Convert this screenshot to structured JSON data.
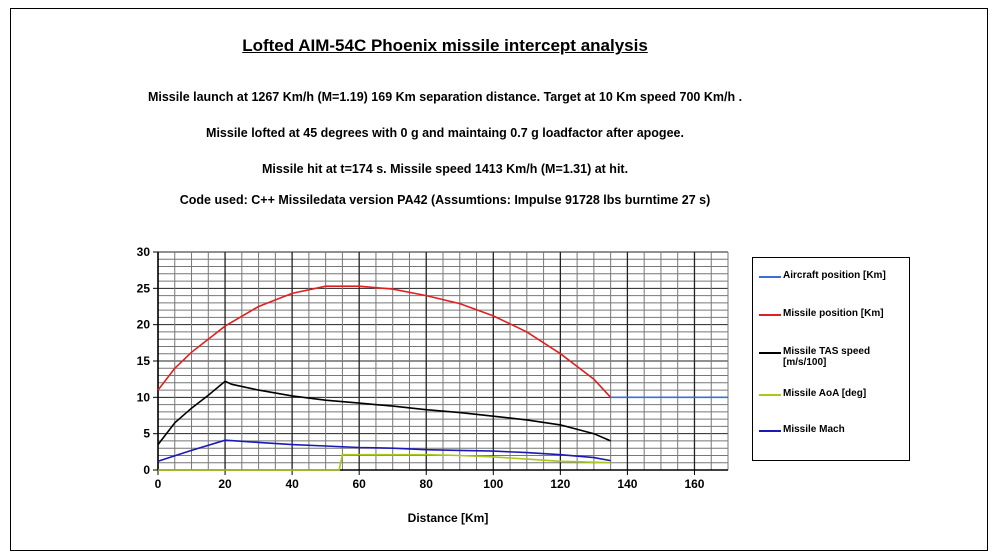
{
  "chart_data": {
    "type": "line",
    "title": "Lofted AIM-54C Phoenix missile intercept analysis",
    "subtitle_lines": [
      "Missile launch at 1267 Km/h (M=1.19) 169 Km separation distance. Target at 10 Km speed 700 Km/h .",
      "Missile lofted at 45 degrees with 0 g and maintaing 0.7 g loadfactor after apogee.",
      "Missile hit at t=174 s. Missile speed  1413 Km/h (M=1.31) at hit.",
      "Code used: C++ Missiledata version PA42 (Assumtions: Impulse 91728 lbs burntime 27 s)"
    ],
    "xlabel": "Distance [Km]",
    "ylabel": "",
    "xlim": [
      0,
      170
    ],
    "ylim": [
      0,
      30
    ],
    "xticks": [
      0,
      20,
      40,
      60,
      80,
      100,
      120,
      140,
      160
    ],
    "yticks": [
      0,
      5,
      10,
      15,
      20,
      25,
      30
    ],
    "grid": true,
    "legend_position": "right",
    "series": [
      {
        "name": "Aircraft position [Km]",
        "color": "#3a6fd8",
        "x": [
          135,
          170
        ],
        "y": [
          10,
          10
        ]
      },
      {
        "name": "Missile position [Km]",
        "color": "#e02020",
        "x": [
          0,
          5,
          10,
          20,
          30,
          40,
          50,
          60,
          70,
          80,
          90,
          100,
          110,
          120,
          130,
          135
        ],
        "y": [
          11,
          14,
          16.2,
          19.8,
          22.5,
          24.3,
          25.3,
          25.3,
          24.9,
          24.0,
          22.9,
          21.2,
          19.0,
          16.0,
          12.5,
          10
        ]
      },
      {
        "name": "Missile TAS speed [m/s/100]",
        "color": "#000000",
        "x": [
          0,
          5,
          10,
          15,
          20,
          22,
          30,
          40,
          50,
          60,
          70,
          80,
          90,
          100,
          110,
          120,
          130,
          135
        ],
        "y": [
          3.5,
          6.5,
          8.5,
          10.3,
          12.2,
          11.8,
          11.0,
          10.2,
          9.6,
          9.2,
          8.8,
          8.3,
          7.9,
          7.4,
          6.9,
          6.2,
          5.0,
          4.0
        ]
      },
      {
        "name": "Missile AoA [deg]",
        "color": "#a8c81e",
        "x": [
          0,
          54,
          55,
          80,
          90,
          100,
          110,
          120,
          135
        ],
        "y": [
          0,
          0,
          2.1,
          2.1,
          2.0,
          1.8,
          1.5,
          1.2,
          1.0
        ]
      },
      {
        "name": "Missile Mach",
        "color": "#1a1ab8",
        "x": [
          0,
          10,
          20,
          30,
          40,
          50,
          60,
          70,
          80,
          90,
          100,
          110,
          120,
          130,
          135
        ],
        "y": [
          1.2,
          2.7,
          4.1,
          3.8,
          3.5,
          3.3,
          3.1,
          3.0,
          2.8,
          2.7,
          2.6,
          2.4,
          2.1,
          1.7,
          1.3
        ]
      }
    ]
  }
}
